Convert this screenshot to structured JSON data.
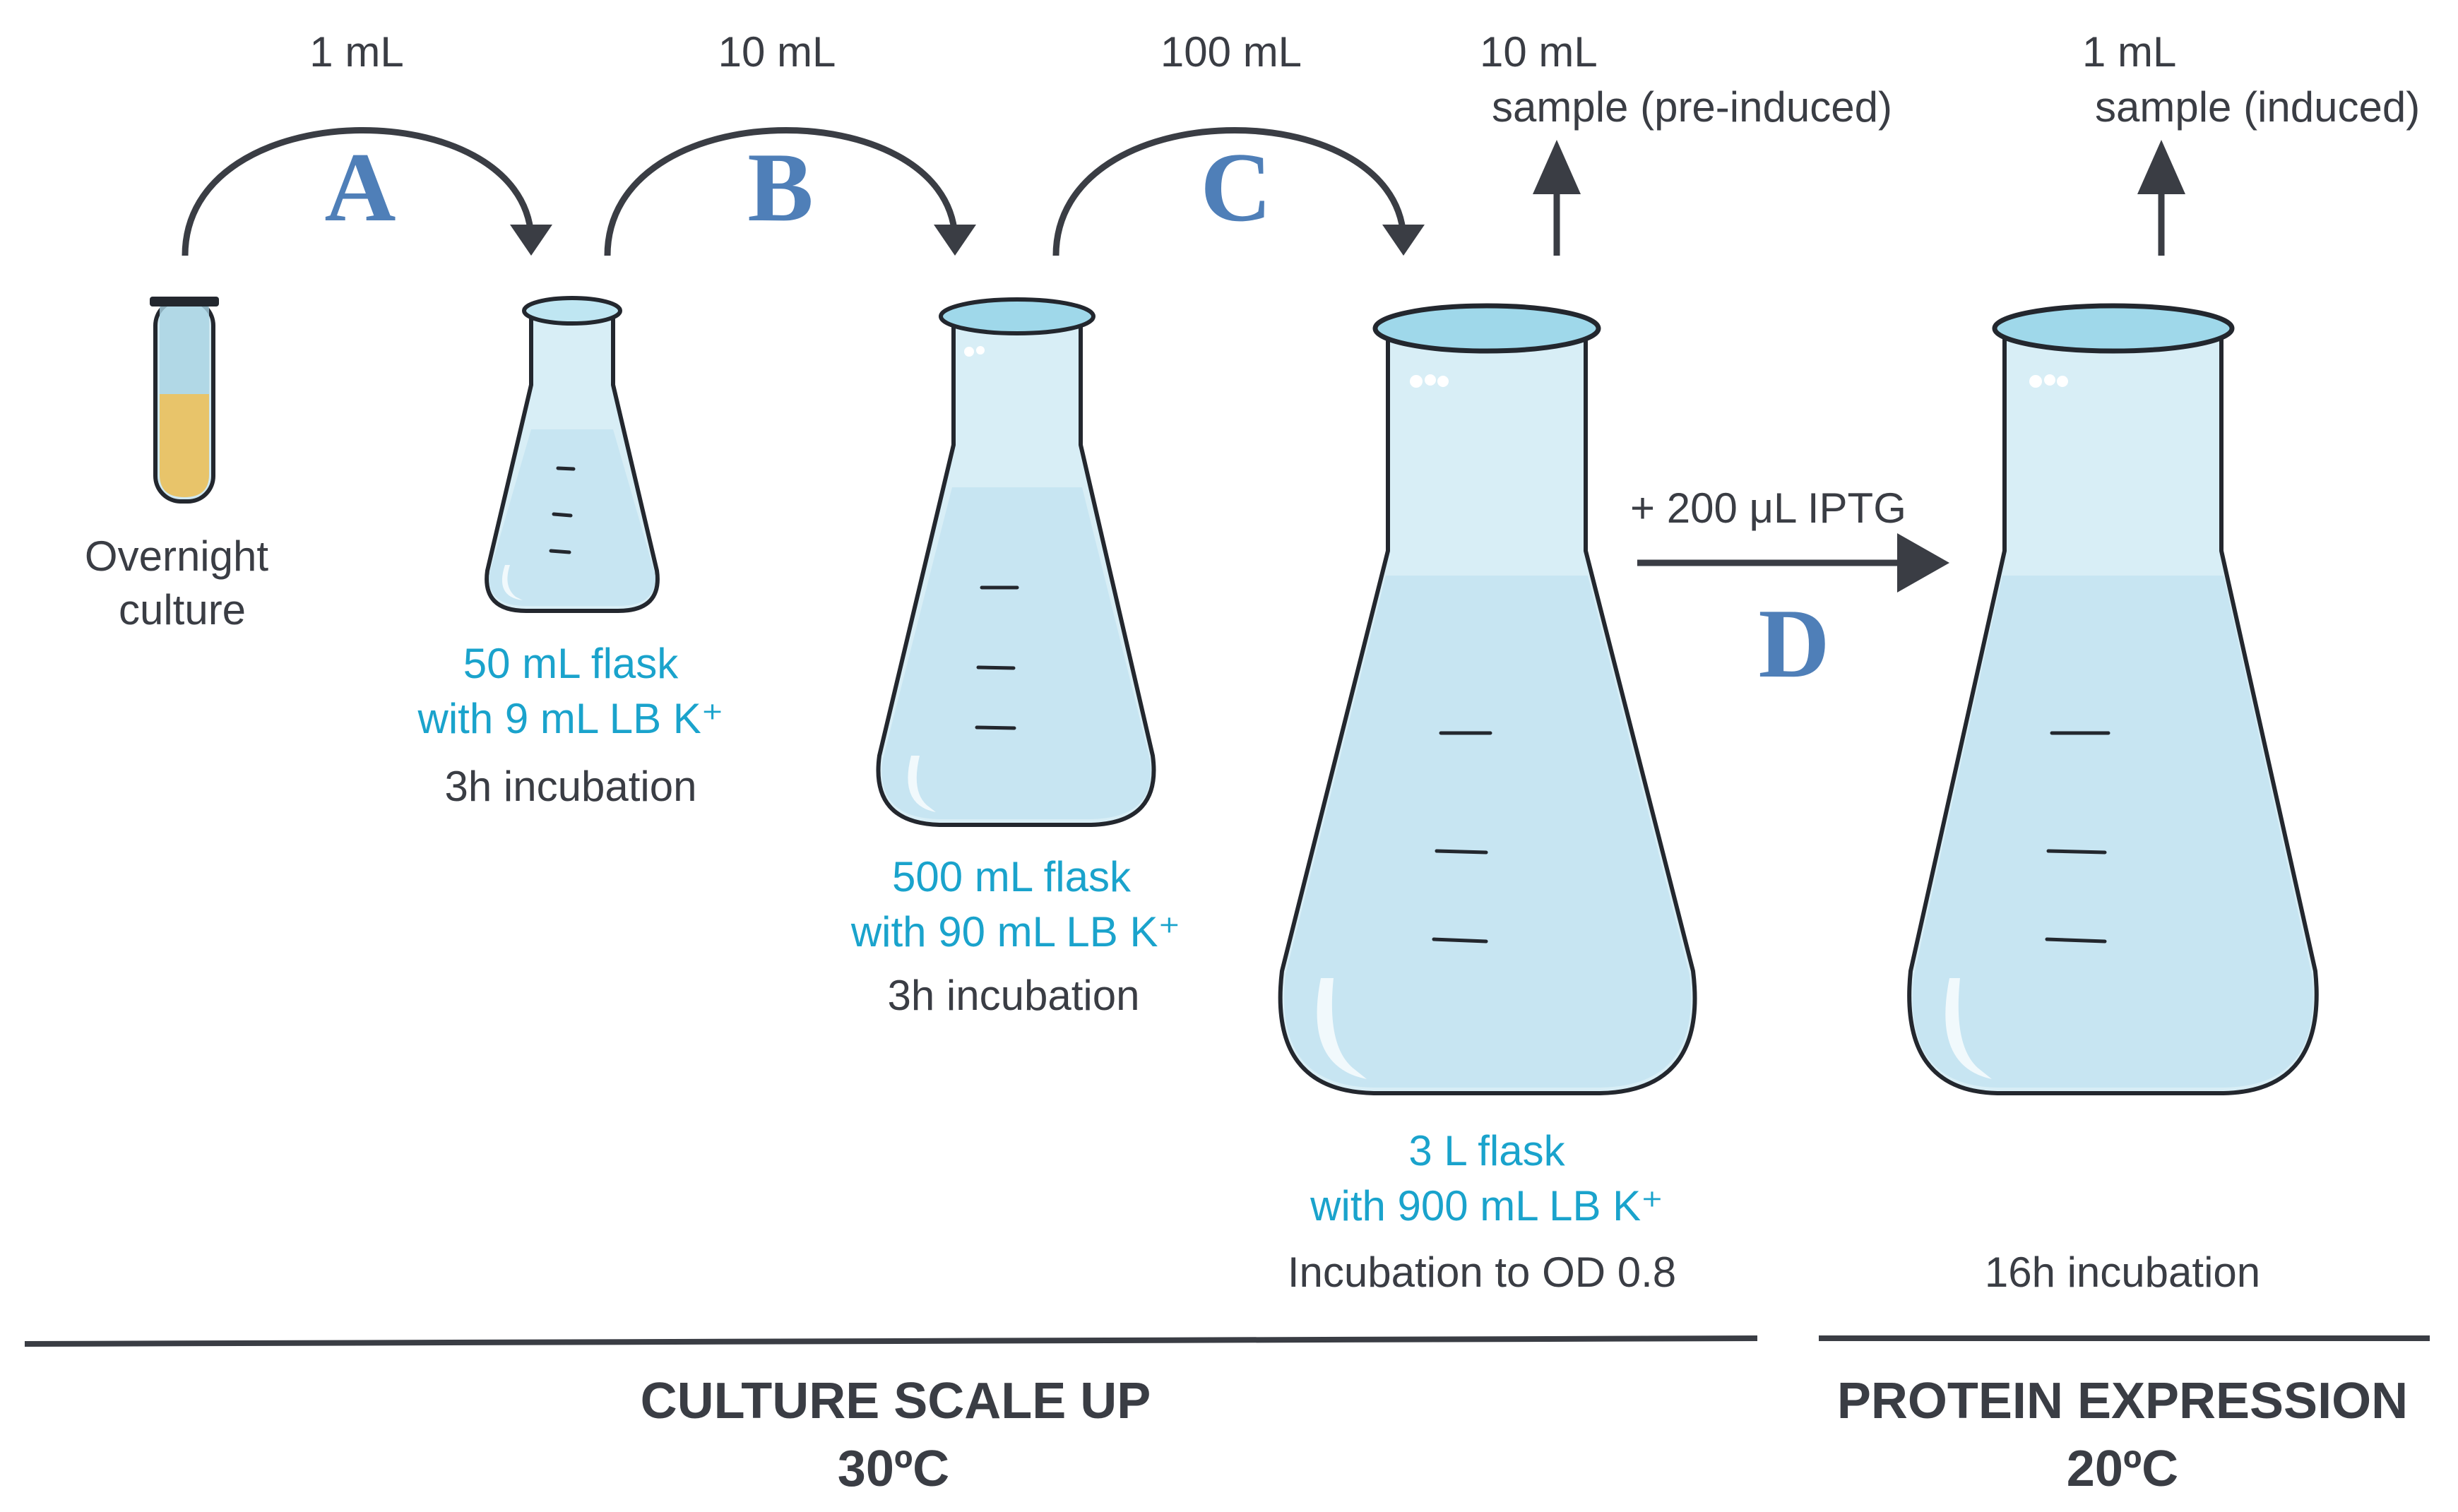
{
  "transfers": {
    "a_volume": "1 mL",
    "b_volume": "10 mL",
    "c_volume": "100 mL"
  },
  "steps": {
    "a": "A",
    "b": "B",
    "c": "C",
    "d": "D"
  },
  "samples": {
    "pre_volume": "10 mL",
    "pre_label": "sample (pre-induced)",
    "induced_volume": "1 mL",
    "induced_label": "sample (induced)"
  },
  "iptg": {
    "label": "+ 200 μL IPTG"
  },
  "vessels": {
    "tube": {
      "line1": "Overnight",
      "line2": "culture"
    },
    "flask_50": {
      "line1": "50 mL flask",
      "line2": "with 9 mL LB K⁺",
      "line3": "3h incubation"
    },
    "flask_500": {
      "line1": "500 mL flask",
      "line2": "with 90 mL LB K⁺",
      "line3": "3h incubation"
    },
    "flask_3l": {
      "line1": "3 L flask",
      "line2": "with 900 mL LB K⁺",
      "line3": "Incubation to OD 0.8"
    },
    "flask_final": {
      "line3": "16h incubation"
    }
  },
  "phases": {
    "scale_up": {
      "title": "CULTURE SCALE UP",
      "temp": "30ºC"
    },
    "expression": {
      "title": "PROTEIN EXPRESSION",
      "temp": "20ºC"
    }
  },
  "colors": {
    "text_dark": "#3a3d44",
    "text_blue": "#1aa3cc",
    "step_letter": "#4f7fb8",
    "glass": "#d8eef6",
    "culture": "#e8c46a"
  }
}
